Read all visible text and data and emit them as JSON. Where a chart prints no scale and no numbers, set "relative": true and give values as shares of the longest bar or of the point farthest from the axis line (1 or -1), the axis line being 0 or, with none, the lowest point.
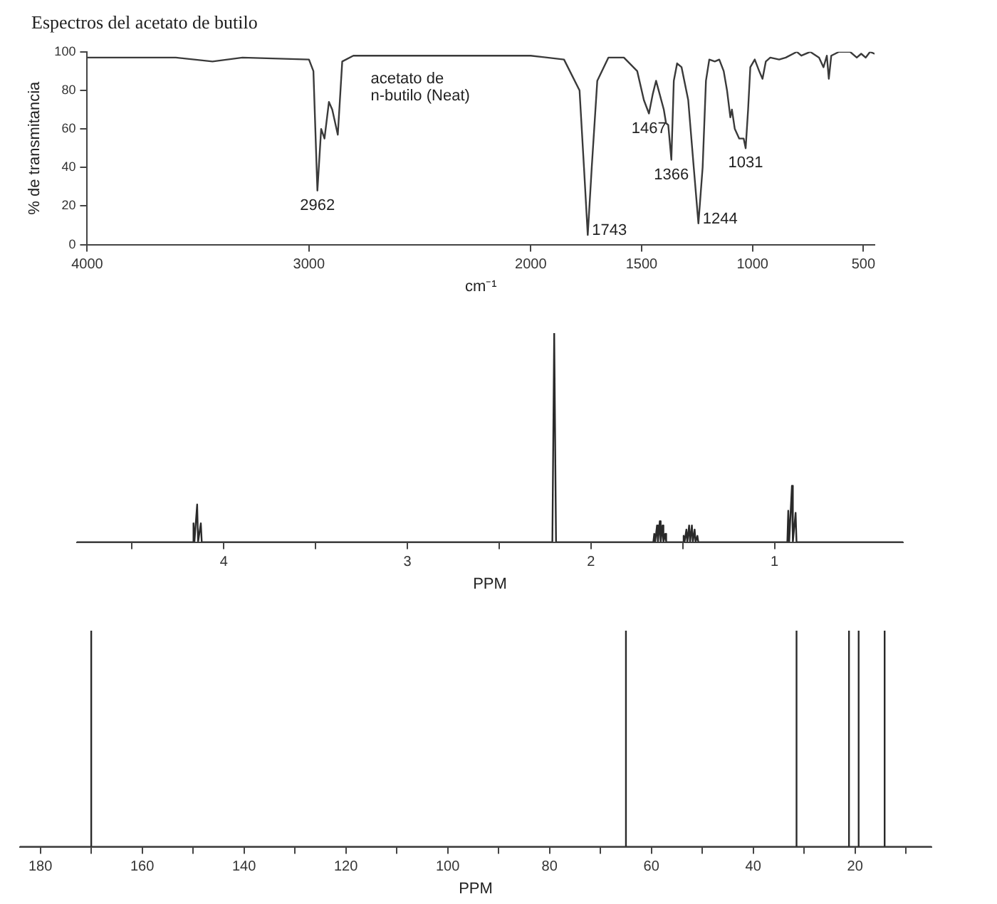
{
  "chart_data": [
    {
      "type": "line",
      "title": "Espectros del acetato de butilo",
      "xlabel": "cm⁻¹",
      "ylabel": "% de transmitancia",
      "xlim": [
        4000,
        450
      ],
      "xticks": [
        4000,
        3000,
        2000,
        1500,
        1000,
        500
      ],
      "ylim": [
        0,
        100
      ],
      "yticks": [
        0,
        20,
        40,
        60,
        80,
        100
      ],
      "x": [
        4000,
        3600,
        3435,
        3300,
        3000,
        2980,
        2962,
        2945,
        2930,
        2910,
        2895,
        2870,
        2850,
        2800,
        2000,
        1850,
        1780,
        1760,
        1743,
        1725,
        1700,
        1650,
        1580,
        1520,
        1490,
        1467,
        1450,
        1435,
        1400,
        1390,
        1380,
        1366,
        1355,
        1340,
        1320,
        1290,
        1265,
        1244,
        1225,
        1210,
        1195,
        1170,
        1150,
        1130,
        1115,
        1100,
        1093,
        1080,
        1060,
        1040,
        1031,
        1020,
        1010,
        990,
        970,
        955,
        940,
        920,
        880,
        850,
        800,
        780,
        740,
        700,
        680,
        665,
        656,
        645,
        610,
        560,
        530,
        510,
        490,
        470,
        450
      ],
      "series": [
        {
          "color": "#3a3a3a",
          "values": [
            97,
            97,
            95,
            97,
            96,
            90,
            28,
            60,
            55,
            74,
            70,
            57,
            95,
            98,
            98,
            96,
            80,
            40,
            5,
            40,
            85,
            97,
            97,
            90,
            75,
            68,
            78,
            85,
            70,
            63,
            62,
            44,
            85,
            94,
            92,
            75,
            40,
            11,
            40,
            85,
            96,
            95,
            96,
            90,
            80,
            66,
            70,
            60,
            55,
            55,
            50,
            70,
            92,
            96,
            90,
            86,
            95,
            97,
            96,
            97,
            100,
            98,
            100,
            97,
            92,
            98,
            86,
            98,
            100,
            100,
            97,
            99,
            97,
            100,
            99
          ]
        }
      ],
      "annotations": [
        {
          "text": "2962",
          "x": 2962,
          "y": 28
        },
        {
          "text": "1743",
          "x": 1743,
          "y": 5
        },
        {
          "text": "1467",
          "x": 1467,
          "y": 68
        },
        {
          "text": "1366",
          "x": 1366,
          "y": 44
        },
        {
          "text": "1244",
          "x": 1244,
          "y": 11
        },
        {
          "text": "1031",
          "x": 1031,
          "y": 50
        },
        "acetato de\nn-butilo (Neat)"
      ]
    },
    {
      "type": "line",
      "relative": true,
      "xlabel": "PPM",
      "xlim": [
        4.8,
        0.3
      ],
      "xticks": [
        {
          "value": 4.5,
          "label": null
        },
        4,
        {
          "value": 3.5,
          "label": null
        },
        3,
        {
          "value": 2.5,
          "label": null
        },
        2,
        {
          "value": 1.5,
          "label": null
        },
        1
      ],
      "x": [
        4.8,
        4.17,
        4.165,
        4.16,
        4.145,
        4.14,
        4.125,
        4.12,
        2.21,
        2.2,
        2.19,
        1.66,
        1.655,
        1.65,
        1.64,
        1.635,
        1.625,
        1.62,
        1.61,
        1.605,
        1.595,
        1.59,
        1.5,
        1.495,
        1.49,
        1.48,
        1.475,
        1.465,
        1.46,
        1.45,
        1.445,
        1.435,
        1.43,
        1.42,
        1.415,
        0.93,
        0.925,
        0.92,
        0.905,
        0.9,
        0.885,
        0.88,
        0.3
      ],
      "series": [
        {
          "color": "#2a2a2a",
          "values": [
            0,
            0,
            0.09,
            0,
            0.18,
            0,
            0.09,
            0,
            0,
            1,
            0,
            0,
            0.04,
            0,
            0.08,
            0,
            0.1,
            0,
            0.08,
            0,
            0.04,
            0,
            0,
            0.03,
            0,
            0.06,
            0,
            0.08,
            0,
            0.08,
            0,
            0.06,
            0,
            0.03,
            0,
            0,
            0.15,
            0,
            0.27,
            0,
            0.14,
            0,
            0
          ]
        }
      ]
    },
    {
      "type": "line",
      "relative": true,
      "xlabel": "PPM",
      "xlim": [
        184,
        5
      ],
      "xticks": [
        180,
        {
          "value": 170,
          "label": null
        },
        160,
        {
          "value": 150,
          "label": null
        },
        140,
        {
          "value": 130,
          "label": null
        },
        120,
        {
          "value": 110,
          "label": null
        },
        100,
        {
          "value": 90,
          "label": null
        },
        80,
        {
          "value": 70,
          "label": null
        },
        60,
        {
          "value": 50,
          "label": null
        },
        40,
        {
          "value": 30,
          "label": null
        },
        20,
        {
          "value": 10,
          "label": null
        }
      ],
      "x": [
        184,
        170,
        170,
        170,
        65,
        65,
        65,
        31.5,
        31.5,
        31.5,
        21.2,
        21.2,
        21.2,
        19.3,
        19.3,
        19.3,
        14.2,
        14.2,
        14.2,
        5
      ],
      "series": [
        {
          "color": "#2a2a2a",
          "values": [
            0,
            0,
            1,
            0,
            0,
            1,
            0,
            0,
            1,
            0,
            0,
            1,
            0,
            0,
            1,
            0,
            0,
            1,
            0,
            0
          ]
        }
      ]
    }
  ]
}
